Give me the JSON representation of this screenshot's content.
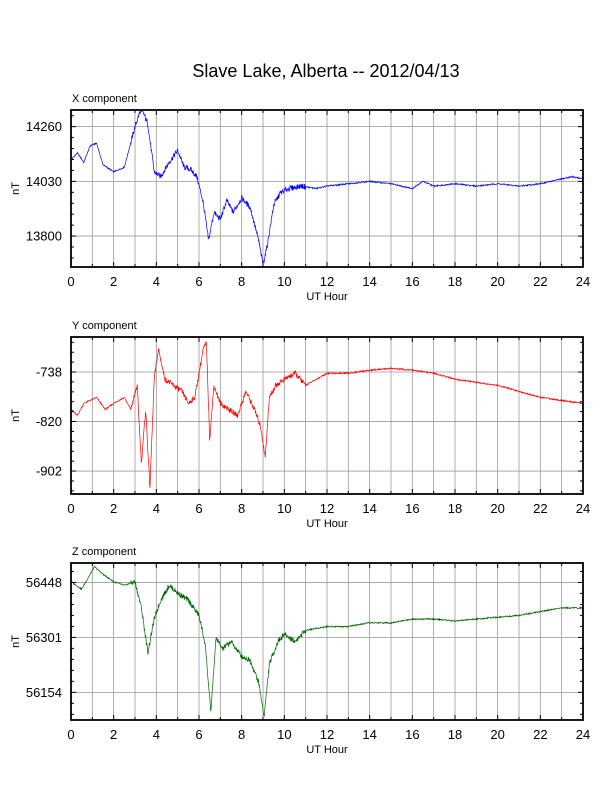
{
  "title": "Slave Lake, Alberta -- 2012/04/13",
  "chart_data": [
    {
      "type": "line",
      "panel_title": "X component",
      "xlabel": "UT Hour",
      "ylabel": "nT",
      "xlim": [
        0,
        24
      ],
      "ylim": [
        13670,
        14330
      ],
      "x_ticks": [
        0,
        2,
        4,
        6,
        8,
        10,
        12,
        14,
        16,
        18,
        20,
        22,
        24
      ],
      "y_ticks": [
        13800,
        14030,
        14260
      ],
      "grid": true,
      "color": "#0000ff",
      "x": [
        0,
        0.3,
        0.6,
        0.9,
        1.2,
        1.5,
        2.0,
        2.5,
        3.0,
        3.3,
        3.6,
        3.9,
        4.2,
        4.6,
        5.0,
        5.3,
        5.6,
        5.9,
        6.2,
        6.45,
        6.7,
        7.0,
        7.3,
        7.6,
        8.0,
        8.4,
        8.8,
        9.0,
        9.2,
        9.5,
        9.8,
        10.2,
        10.8,
        11.5,
        12.0,
        13.0,
        14.0,
        15.0,
        15.5,
        16.0,
        16.5,
        17.0,
        18.0,
        19.0,
        20.0,
        21.0,
        22.0,
        22.5,
        23.0,
        23.5,
        24.0
      ],
      "values": [
        14120,
        14150,
        14110,
        14180,
        14190,
        14100,
        14070,
        14090,
        14260,
        14340,
        14270,
        14070,
        14050,
        14110,
        14160,
        14090,
        14080,
        14050,
        13940,
        13780,
        13900,
        13870,
        13950,
        13900,
        13960,
        13920,
        13780,
        13680,
        13760,
        13930,
        13980,
        14000,
        14010,
        14000,
        14010,
        14020,
        14030,
        14020,
        14010,
        14000,
        14030,
        14010,
        14020,
        14010,
        14020,
        14010,
        14020,
        14030,
        14040,
        14050,
        14040
      ]
    },
    {
      "type": "line",
      "panel_title": "Y component",
      "xlabel": "UT Hour",
      "ylabel": "nT",
      "xlim": [
        0,
        24
      ],
      "ylim": [
        -940,
        -680
      ],
      "x_ticks": [
        0,
        2,
        4,
        6,
        8,
        10,
        12,
        14,
        16,
        18,
        20,
        22,
        24
      ],
      "y_ticks": [
        -738,
        -820,
        -902
      ],
      "grid": true,
      "color": "#ff0000",
      "x": [
        0,
        0.3,
        0.6,
        0.9,
        1.2,
        1.6,
        2.0,
        2.5,
        2.8,
        3.1,
        3.3,
        3.5,
        3.7,
        3.9,
        4.1,
        4.4,
        4.8,
        5.2,
        5.5,
        5.8,
        6.0,
        6.2,
        6.35,
        6.5,
        6.7,
        7.0,
        7.4,
        7.8,
        8.2,
        8.6,
        8.9,
        9.1,
        9.3,
        9.6,
        10.0,
        10.5,
        11.0,
        11.5,
        12.0,
        13.0,
        14.0,
        15.0,
        16.0,
        17.0,
        18.0,
        19.0,
        20.0,
        21.0,
        22.0,
        23.0,
        24.0
      ],
      "values": [
        -800,
        -810,
        -790,
        -785,
        -780,
        -800,
        -790,
        -780,
        -800,
        -760,
        -890,
        -800,
        -930,
        -750,
        -700,
        -750,
        -760,
        -770,
        -790,
        -780,
        -740,
        -700,
        -690,
        -850,
        -760,
        -790,
        -800,
        -810,
        -770,
        -800,
        -830,
        -880,
        -780,
        -760,
        -750,
        -740,
        -760,
        -750,
        -740,
        -740,
        -735,
        -732,
        -735,
        -740,
        -750,
        -755,
        -760,
        -770,
        -780,
        -785,
        -790
      ]
    },
    {
      "type": "line",
      "panel_title": "Z component",
      "xlabel": "UT Hour",
      "ylabel": "nT",
      "xlim": [
        0,
        24
      ],
      "ylim": [
        56080,
        56500
      ],
      "x_ticks": [
        0,
        2,
        4,
        6,
        8,
        10,
        12,
        14,
        16,
        18,
        20,
        22,
        24
      ],
      "y_ticks": [
        56154,
        56301,
        56448
      ],
      "grid": true,
      "color": "#006400",
      "x": [
        0,
        0.5,
        0.8,
        1.1,
        1.5,
        2.0,
        2.5,
        3.0,
        3.3,
        3.6,
        3.9,
        4.2,
        4.6,
        5.0,
        5.5,
        6.0,
        6.3,
        6.55,
        6.8,
        7.1,
        7.5,
        8.0,
        8.4,
        8.8,
        9.05,
        9.3,
        9.7,
        10.0,
        10.5,
        11.0,
        12.0,
        13.0,
        14.0,
        15.0,
        16.0,
        17.0,
        18.0,
        19.0,
        20.0,
        21.0,
        22.0,
        23.0,
        24.0
      ],
      "values": [
        56450,
        56430,
        56460,
        56490,
        56470,
        56450,
        56440,
        56450,
        56380,
        56260,
        56350,
        56400,
        56440,
        56420,
        56400,
        56360,
        56280,
        56100,
        56300,
        56270,
        56290,
        56250,
        56240,
        56180,
        56090,
        56230,
        56290,
        56310,
        56290,
        56320,
        56330,
        56330,
        56340,
        56340,
        56350,
        56350,
        56345,
        56350,
        56355,
        56360,
        56370,
        56380,
        56380
      ]
    }
  ]
}
